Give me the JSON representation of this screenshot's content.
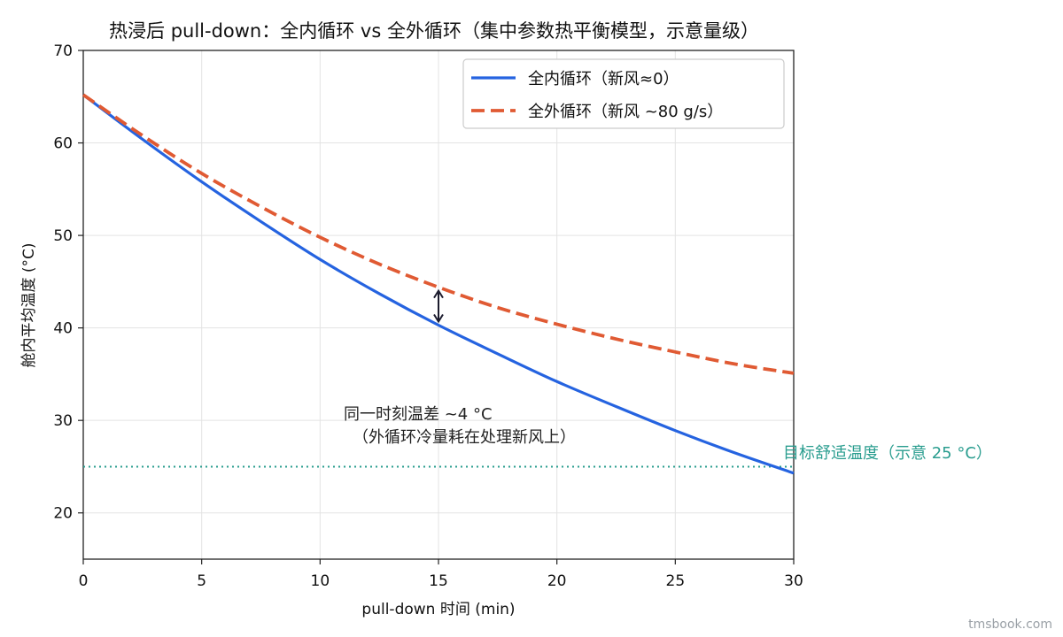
{
  "chart_data": {
    "type": "line",
    "title": "热浸后 pull-down：全内循环 vs 全外循环（集中参数热平衡模型，示意量级）",
    "xlabel": "pull-down 时间 (min)",
    "ylabel": "舱内平均温度 (°C)",
    "xlim": [
      0,
      30
    ],
    "ylim": [
      15,
      70
    ],
    "xticks": [
      0,
      5,
      10,
      15,
      20,
      25,
      30
    ],
    "yticks": [
      20,
      30,
      40,
      50,
      60,
      70
    ],
    "grid": true,
    "legend_position": "top-right",
    "x": [
      0,
      2.5,
      5,
      7.5,
      10,
      12.5,
      15,
      17.5,
      20,
      22.5,
      25,
      27.5,
      30
    ],
    "series": [
      {
        "name": "全内循环（新风≈0）",
        "color": "#2563e0",
        "style": "solid",
        "values": [
          65.2,
          60.4,
          55.8,
          51.5,
          47.4,
          43.7,
          40.3,
          37.2,
          34.2,
          31.5,
          28.9,
          26.5,
          24.3
        ]
      },
      {
        "name": "全外循环（新风 ~80 g/s）",
        "color": "#e05a33",
        "style": "dashed",
        "values": [
          65.2,
          60.8,
          56.7,
          53.1,
          49.8,
          46.9,
          44.4,
          42.2,
          40.4,
          38.8,
          37.4,
          36.1,
          35.1
        ]
      }
    ],
    "reference_line": {
      "value": 25,
      "label": "目标舒适温度（示意 25 °C）",
      "color": "#2a9d8f"
    },
    "annotation": {
      "x": 15,
      "y_top": 44.4,
      "y_bottom": 40.3,
      "line1": "同一时刻温差 ~4 °C",
      "line2": "（外循环冷量耗在处理新风上）",
      "color": "#1c1c2e"
    }
  },
  "watermark": "tmsbook.com"
}
